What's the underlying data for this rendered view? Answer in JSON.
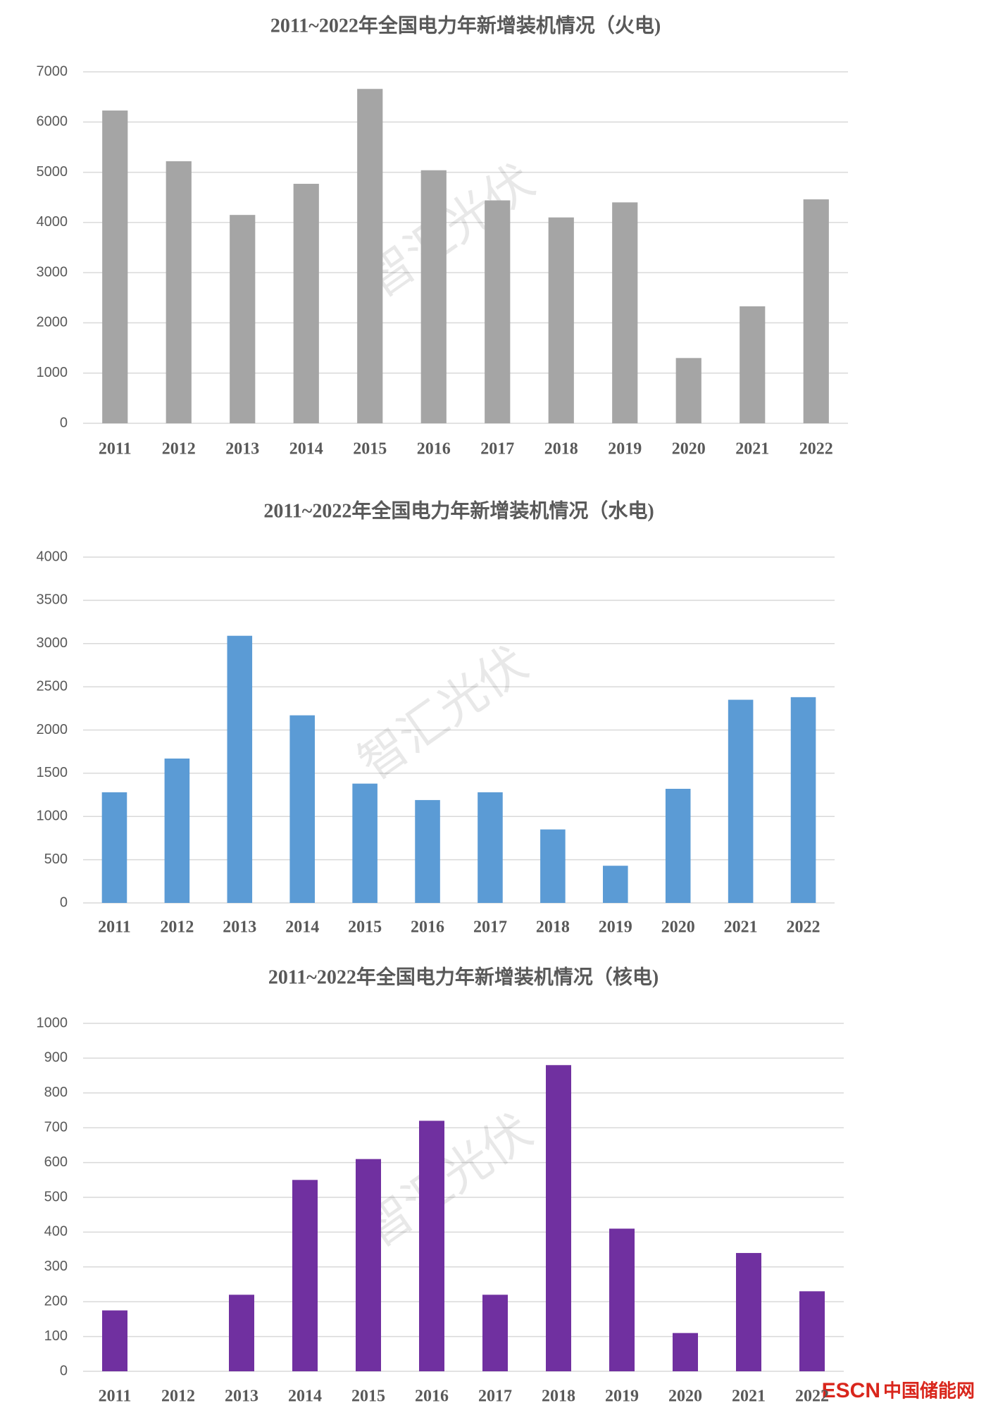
{
  "chart_data": [
    {
      "type": "bar",
      "title": "2011~2022年全国电力年新增装机情况（火电)",
      "categories": [
        "2011",
        "2012",
        "2013",
        "2014",
        "2015",
        "2016",
        "2017",
        "2018",
        "2019",
        "2020",
        "2021",
        "2022"
      ],
      "values": [
        6230,
        5220,
        4150,
        4770,
        6660,
        5040,
        4440,
        4100,
        4400,
        1300,
        2330,
        4460
      ],
      "color": "#a5a5a5",
      "ylim": [
        0,
        7000
      ],
      "yticks": [
        0,
        1000,
        2000,
        3000,
        4000,
        5000,
        6000,
        7000
      ],
      "grid": true
    },
    {
      "type": "bar",
      "title": "2011~2022年全国电力年新增装机情况（水电)",
      "categories": [
        "2011",
        "2012",
        "2013",
        "2014",
        "2015",
        "2016",
        "2017",
        "2018",
        "2019",
        "2020",
        "2021",
        "2022"
      ],
      "values": [
        1280,
        1670,
        3090,
        2170,
        1380,
        1190,
        1280,
        850,
        430,
        1320,
        2350,
        2380
      ],
      "color": "#5b9bd5",
      "ylim": [
        0,
        4000
      ],
      "yticks": [
        0,
        500,
        1000,
        1500,
        2000,
        2500,
        3000,
        3500,
        4000
      ],
      "grid": true
    },
    {
      "type": "bar",
      "title": "2011~2022年全国电力年新增装机情况（核电)",
      "categories": [
        "2011",
        "2012",
        "2013",
        "2014",
        "2015",
        "2016",
        "2017",
        "2018",
        "2019",
        "2020",
        "2021",
        "2022"
      ],
      "values": [
        175,
        0,
        220,
        550,
        610,
        720,
        220,
        880,
        410,
        110,
        340,
        230
      ],
      "color": "#7030a0",
      "ylim": [
        0,
        1000
      ],
      "yticks": [
        0,
        100,
        200,
        300,
        400,
        500,
        600,
        700,
        800,
        900,
        1000
      ],
      "grid": true
    }
  ],
  "watermark": "智汇光伏",
  "logo": {
    "brand": "ESCN",
    "name": "中国储能网"
  }
}
